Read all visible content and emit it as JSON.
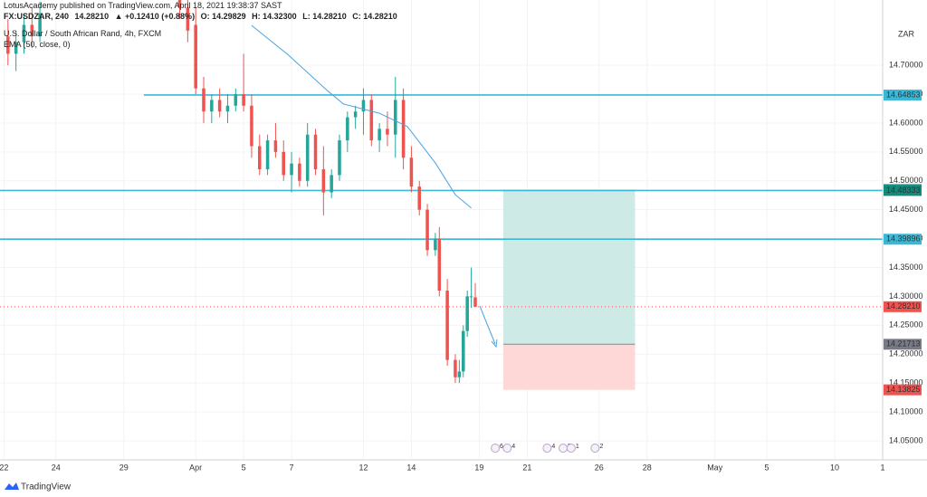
{
  "header": {
    "publisher": "LotusAcademy published on TradingView.com, April 18, 2021 19:38:37 SAST",
    "quote": [
      "FX:USDZAR, 240",
      "14.28210",
      "▲ +0.12410 (+0.88%)",
      "O: 14.29829",
      "H: 14.32300",
      "L: 14.28210",
      "C: 14.28210"
    ],
    "instrument": "U.S. Dollar / South African Rand, 4h, FXCM",
    "indicator": "EMA (50, close, 0)",
    "currency": "ZAR"
  },
  "footer": {
    "brand": "TradingView"
  },
  "chart_data": {
    "type": "candlestick",
    "xlim": [
      -2,
      219
    ],
    "ylim": [
      14.017,
      14.813
    ],
    "xticks": [
      {
        "value": -1,
        "label": "22"
      },
      {
        "value": 12,
        "label": "24"
      },
      {
        "value": 29,
        "label": "29"
      },
      {
        "value": 47,
        "label": "Apr"
      },
      {
        "value": 59,
        "label": "5"
      },
      {
        "value": 71,
        "label": "7"
      },
      {
        "value": 89,
        "label": "12"
      },
      {
        "value": 101,
        "label": "14"
      },
      {
        "value": 118,
        "label": "19"
      },
      {
        "value": 130,
        "label": "21"
      },
      {
        "value": 148,
        "label": "26"
      },
      {
        "value": 160,
        "label": "28"
      },
      {
        "value": 177,
        "label": "May"
      },
      {
        "value": 190,
        "label": "5"
      },
      {
        "value": 207,
        "label": "10"
      },
      {
        "value": 219,
        "label": "1"
      }
    ],
    "yticks": [
      {
        "value": 14.05,
        "label": "14.05000"
      },
      {
        "value": 14.1,
        "label": "14.10000"
      },
      {
        "value": 14.15,
        "label": "14.15000"
      },
      {
        "value": 14.2,
        "label": "14.20000"
      },
      {
        "value": 14.25,
        "label": "14.25000"
      },
      {
        "value": 14.3,
        "label": "14.30000"
      },
      {
        "value": 14.35,
        "label": "14.35000"
      },
      {
        "value": 14.4,
        "label": "14.40000"
      },
      {
        "value": 14.45,
        "label": "14.45000"
      },
      {
        "value": 14.5,
        "label": "14.50000"
      },
      {
        "value": 14.55,
        "label": "14.55000"
      },
      {
        "value": 14.6,
        "label": "14.60000"
      },
      {
        "value": 14.65,
        "label": "14.65000"
      },
      {
        "value": 14.7,
        "label": "14.70000"
      }
    ],
    "up_color": "#26a69a",
    "down_color": "#ef5350",
    "x": [
      0,
      2,
      4,
      6,
      8,
      43,
      45,
      47,
      49,
      51,
      53,
      55,
      57,
      59,
      61,
      63,
      65,
      67,
      69,
      71,
      73,
      75,
      77,
      79,
      81,
      83,
      85,
      87,
      89,
      91,
      93,
      95,
      97,
      99,
      101,
      103,
      105,
      107,
      108,
      110,
      112,
      113,
      114,
      115,
      116,
      117
    ],
    "open": [
      14.75,
      14.72,
      14.74,
      14.77,
      14.75,
      14.82,
      14.8,
      14.77,
      14.66,
      14.62,
      14.64,
      14.62,
      14.63,
      14.65,
      14.63,
      14.56,
      14.52,
      14.57,
      14.55,
      14.51,
      14.53,
      14.5,
      14.58,
      14.52,
      14.48,
      14.51,
      14.57,
      14.61,
      14.62,
      14.64,
      14.57,
      14.59,
      14.58,
      14.64,
      14.54,
      14.49,
      14.45,
      14.38,
      14.4,
      14.31,
      14.19,
      14.16,
      14.17,
      14.24,
      14.3,
      14.29829
    ],
    "high": [
      14.78,
      14.76,
      14.79,
      14.8,
      14.81,
      14.84,
      14.82,
      14.8,
      14.68,
      14.65,
      14.66,
      14.65,
      14.66,
      14.72,
      14.65,
      14.58,
      14.58,
      14.6,
      14.57,
      14.55,
      14.54,
      14.6,
      14.59,
      14.56,
      14.52,
      14.58,
      14.62,
      14.63,
      14.66,
      14.65,
      14.6,
      14.62,
      14.68,
      14.66,
      14.56,
      14.5,
      14.46,
      14.41,
      14.42,
      14.33,
      14.2,
      14.19,
      14.25,
      14.31,
      14.35,
      14.323
    ],
    "low": [
      14.7,
      14.69,
      14.72,
      14.73,
      14.74,
      14.78,
      14.74,
      14.65,
      14.6,
      14.6,
      14.61,
      14.6,
      14.62,
      14.62,
      14.54,
      14.51,
      14.51,
      14.54,
      14.5,
      14.48,
      14.49,
      14.49,
      14.51,
      14.44,
      14.47,
      14.5,
      14.55,
      14.59,
      14.58,
      14.56,
      14.55,
      14.56,
      14.54,
      14.52,
      14.48,
      14.44,
      14.37,
      14.37,
      14.3,
      14.18,
      14.15,
      14.15,
      14.16,
      14.23,
      14.28,
      14.2821
    ],
    "close": [
      14.72,
      14.74,
      14.77,
      14.75,
      14.79,
      14.8,
      14.76,
      14.66,
      14.62,
      14.64,
      14.62,
      14.63,
      14.65,
      14.63,
      14.56,
      14.52,
      14.57,
      14.55,
      14.51,
      14.53,
      14.5,
      14.58,
      14.52,
      14.48,
      14.51,
      14.57,
      14.61,
      14.62,
      14.64,
      14.57,
      14.59,
      14.58,
      14.64,
      14.54,
      14.49,
      14.45,
      14.38,
      14.4,
      14.31,
      14.19,
      14.16,
      14.17,
      14.24,
      14.3,
      14.3,
      14.2821
    ],
    "ema": {
      "color": "#4aa3df",
      "x": [
        61,
        70,
        80,
        84,
        93,
        100,
        107,
        112,
        116
      ],
      "values": [
        14.769,
        14.719,
        14.656,
        14.633,
        14.617,
        14.594,
        14.531,
        14.476,
        14.453
      ]
    },
    "levels": [
      {
        "start": 34,
        "value": 14.64853,
        "label": "14.64853"
      },
      {
        "start": -2,
        "value": 14.48333,
        "label": "14.48333"
      },
      {
        "start": -2,
        "value": 14.39896,
        "label": "14.39896"
      }
    ],
    "level_color": "#3bb8d6",
    "last_price": {
      "value": 14.2821,
      "label": "14.28210"
    },
    "position": {
      "x": [
        124,
        157
      ],
      "target": {
        "value": 14.485,
        "label": "14.48500"
      },
      "entry": {
        "value": 14.21713,
        "label": "14.21713"
      },
      "stop": {
        "value": 14.13825,
        "label": "14.13825"
      }
    },
    "events": [
      {
        "x": 122,
        "label": "6"
      },
      {
        "x": 125,
        "label": "4"
      },
      {
        "x": 135,
        "label": "4"
      },
      {
        "x": 139,
        "label": "3"
      },
      {
        "x": 141,
        "label": "1"
      },
      {
        "x": 147,
        "label": "2"
      }
    ]
  }
}
